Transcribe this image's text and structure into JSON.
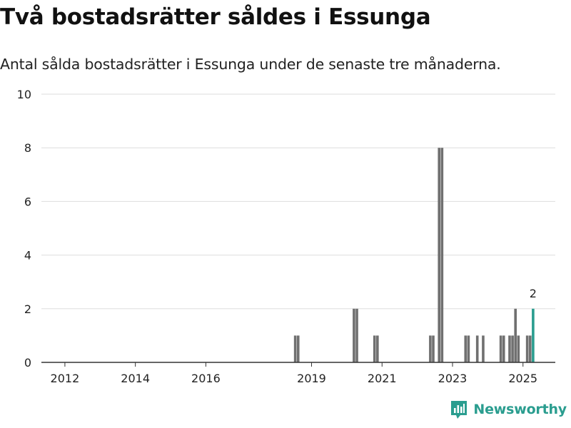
{
  "header": {
    "title": "Två bostadsrätter såldes i Essunga",
    "subtitle": "Antal sålda bostadsrätter i Essunga under de senaste tre månaderna."
  },
  "brand": {
    "name": "Newsworthy",
    "icon": "newsworthy-logo-icon",
    "color": "#2a9d8f"
  },
  "colors": {
    "bar": "#707070",
    "highlight": "#2a9d8f",
    "grid": "#dddddd",
    "axis": "#333333"
  },
  "chart_data": {
    "type": "bar",
    "ylim": [
      0,
      10
    ],
    "yticks": [
      0,
      2,
      4,
      6,
      8,
      10
    ],
    "xticks": [
      "2012",
      "2014",
      "2016",
      "2019",
      "2021",
      "2023",
      "2025"
    ],
    "grid": true,
    "legend": "none",
    "series": [
      {
        "values": [
          {
            "x": "2018-07",
            "y": 1
          },
          {
            "x": "2018-08",
            "y": 1
          },
          {
            "x": "2020-03",
            "y": 2
          },
          {
            "x": "2020-04",
            "y": 2
          },
          {
            "x": "2020-10",
            "y": 1
          },
          {
            "x": "2020-11",
            "y": 1
          },
          {
            "x": "2022-05",
            "y": 1
          },
          {
            "x": "2022-06",
            "y": 1
          },
          {
            "x": "2022-08",
            "y": 8
          },
          {
            "x": "2022-09",
            "y": 8
          },
          {
            "x": "2023-05",
            "y": 1
          },
          {
            "x": "2023-06",
            "y": 1
          },
          {
            "x": "2023-09",
            "y": 1
          },
          {
            "x": "2023-11",
            "y": 1
          },
          {
            "x": "2024-05",
            "y": 1
          },
          {
            "x": "2024-06",
            "y": 1
          },
          {
            "x": "2024-08",
            "y": 1
          },
          {
            "x": "2024-09",
            "y": 1
          },
          {
            "x": "2024-10",
            "y": 2
          },
          {
            "x": "2024-11",
            "y": 1
          },
          {
            "x": "2025-02",
            "y": 1
          },
          {
            "x": "2025-03",
            "y": 1
          },
          {
            "x": "2025-04",
            "y": 2,
            "highlight": true,
            "label": "2"
          }
        ]
      }
    ]
  }
}
